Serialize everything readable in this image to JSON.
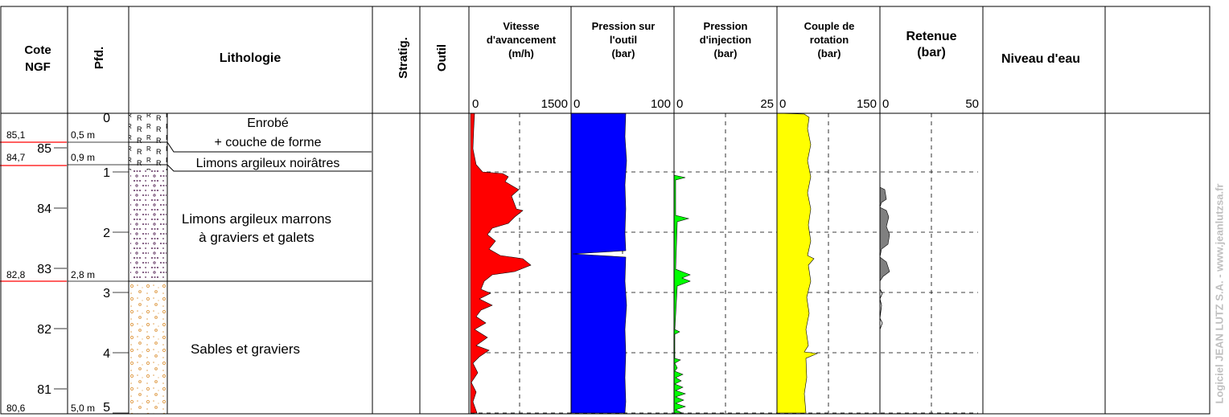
{
  "headers": {
    "cote": [
      "Cote",
      "NGF"
    ],
    "pfd": "Pfd.",
    "lithologie": "Lithologie",
    "stratig": "Stratig.",
    "outil": "Outil",
    "vitesse": [
      "Vitesse",
      "d'avancement",
      "(m/h)"
    ],
    "pression_outil": [
      "Pression sur",
      "l'outil",
      "(bar)"
    ],
    "pression_injection": [
      "Pression",
      "d'injection",
      "(bar)"
    ],
    "couple": [
      "Couple de",
      "rotation",
      "(bar)"
    ],
    "retenue": [
      "Retenue",
      "(bar)"
    ],
    "niveau_eau": "Niveau d'eau"
  },
  "scales": {
    "vitesse": {
      "min": "0",
      "max": "1500"
    },
    "pression_outil": {
      "min": "0",
      "max": "100"
    },
    "pression_injection": {
      "min": "0",
      "max": "25"
    },
    "couple": {
      "min": "0",
      "max": "150"
    },
    "retenue": {
      "min": "0",
      "max": "50"
    }
  },
  "depth_axis": {
    "ticks": [
      "0",
      "1",
      "2",
      "3",
      "4",
      "5"
    ],
    "ngf_ticks": [
      "85",
      "84",
      "83",
      "82",
      "81"
    ]
  },
  "layers": [
    {
      "cote": "85,1",
      "depth": "0,5 m",
      "labels": [
        "Enrobé",
        "+ couche de forme"
      ],
      "pattern": "enrobe"
    },
    {
      "cote": "84,7",
      "depth": "0,9 m",
      "labels": [
        "Limons argileux noirâtres"
      ],
      "pattern": "limon_noir"
    },
    {
      "cote": "82,8",
      "depth": "2,8 m",
      "labels": [
        "Limons argileux marrons",
        "à graviers et galets"
      ],
      "pattern": "limon_marron"
    },
    {
      "cote": "80,6",
      "depth": "5,0 m",
      "labels": [
        "Sables et graviers"
      ],
      "pattern": "sable"
    }
  ],
  "colors": {
    "vitesse": "#ff0000",
    "pression_outil": "#0000ff",
    "pression_injection": "#00ff00",
    "couple": "#ffff00",
    "retenue": "#808080",
    "cote_line": "#ff0000"
  },
  "watermark": "Logiciel JEAN LUTZ S.A. - www.jeanlutzsa.fr"
}
